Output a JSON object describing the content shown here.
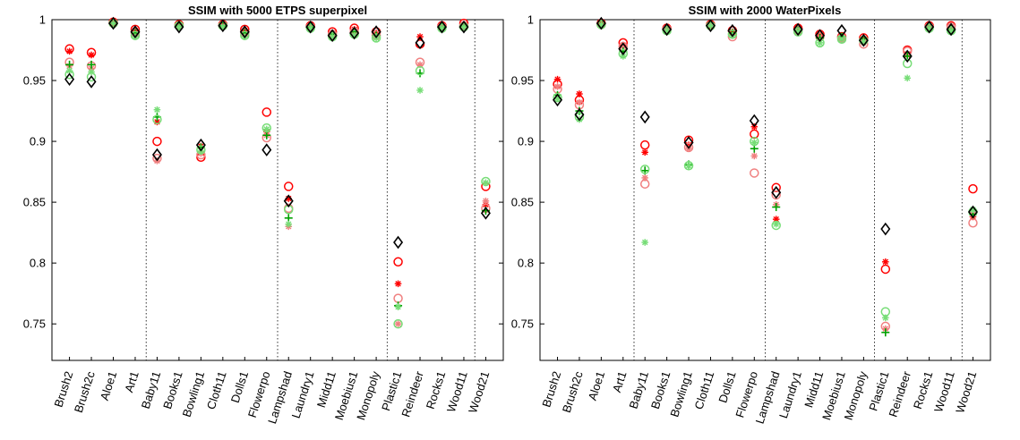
{
  "chart_data": [
    {
      "type": "scatter",
      "title": "SSIM with 5000 ETPS superpixel",
      "ylim": [
        0.72,
        1.0
      ],
      "yticks": [
        "0.75",
        "0.8",
        "0.85",
        "0.9",
        "0.95",
        "1"
      ],
      "yticks_values": [
        0.75,
        0.8,
        0.85,
        0.9,
        0.95,
        1.0
      ],
      "categories": [
        "Brush2",
        "Brush2c",
        "Aloe1",
        "Art1",
        "Baby11",
        "Books1",
        "Bowling1",
        "Cloth11",
        "Dolls1",
        "Flowerpo",
        "Lampshad",
        "Laundry1",
        "Midd11",
        "Moebius1",
        "Monopoly",
        "Plastic1",
        "Reindeer",
        "Rocks1",
        "Wood11",
        "Wood21"
      ],
      "separators_after": [
        "Art1",
        "Flowerpo",
        "Monopoly",
        "Wood11"
      ],
      "grid": false,
      "legend": "none",
      "series": [
        {
          "marker": "circle",
          "color": "#ff0000",
          "values": [
            0.976,
            0.973,
            0.998,
            0.992,
            0.9,
            0.996,
            0.887,
            0.996,
            0.992,
            0.924,
            0.863,
            0.995,
            0.99,
            0.993,
            0.99,
            0.801,
            0.98,
            0.995,
            0.997,
            0.863
          ]
        },
        {
          "marker": "asterisk",
          "color": "#ff0000",
          "values": [
            0.974,
            0.971,
            0.998,
            0.991,
            0.916,
            0.996,
            0.896,
            0.996,
            0.991,
            0.908,
            0.853,
            0.995,
            0.989,
            0.992,
            0.989,
            0.783,
            0.986,
            0.995,
            0.996,
            0.848
          ]
        },
        {
          "marker": "circle",
          "color": "#f08080",
          "values": [
            0.965,
            0.962,
            0.997,
            0.989,
            0.886,
            0.995,
            0.889,
            0.995,
            0.989,
            0.903,
            0.845,
            0.994,
            0.988,
            0.99,
            0.987,
            0.771,
            0.965,
            0.994,
            0.995,
            0.845
          ]
        },
        {
          "marker": "asterisk",
          "color": "#f08080",
          "values": [
            0.962,
            0.96,
            0.997,
            0.988,
            0.884,
            0.995,
            0.89,
            0.995,
            0.988,
            0.905,
            0.83,
            0.994,
            0.987,
            0.989,
            0.986,
            0.75,
            0.963,
            0.994,
            0.995,
            0.851
          ]
        },
        {
          "marker": "plus",
          "color": "#00a000",
          "values": [
            0.963,
            0.963,
            0.997,
            0.989,
            0.92,
            0.995,
            0.895,
            0.995,
            0.989,
            0.905,
            0.837,
            0.994,
            0.988,
            0.99,
            0.987,
            0.765,
            0.956,
            0.994,
            0.995,
            0.843
          ]
        },
        {
          "marker": "circle",
          "color": "#77dd77",
          "values": [
            0.955,
            0.953,
            0.997,
            0.987,
            0.918,
            0.995,
            0.893,
            0.995,
            0.987,
            0.911,
            0.844,
            0.993,
            0.986,
            0.988,
            0.985,
            0.75,
            0.958,
            0.993,
            0.994,
            0.867
          ]
        },
        {
          "marker": "asterisk",
          "color": "#77dd77",
          "values": [
            0.958,
            0.957,
            0.997,
            0.986,
            0.926,
            0.994,
            0.892,
            0.994,
            0.986,
            0.91,
            0.832,
            0.993,
            0.986,
            0.987,
            0.985,
            0.764,
            0.942,
            0.993,
            0.994,
            0.866
          ]
        },
        {
          "marker": "diamond",
          "color": "#000000",
          "values": [
            0.951,
            0.949,
            0.997,
            0.99,
            0.889,
            0.994,
            0.897,
            0.995,
            0.99,
            0.893,
            0.851,
            0.994,
            0.987,
            0.989,
            0.99,
            0.817,
            0.981,
            0.994,
            0.994,
            0.841
          ]
        }
      ]
    },
    {
      "type": "scatter",
      "title": "SSIM with 2000 WaterPixels",
      "ylim": [
        0.72,
        1.0
      ],
      "yticks": [
        "0.75",
        "0.8",
        "0.85",
        "0.9",
        "0.95",
        "1"
      ],
      "yticks_values": [
        0.75,
        0.8,
        0.85,
        0.9,
        0.95,
        1.0
      ],
      "categories": [
        "Brush2",
        "Brush2c",
        "Aloe1",
        "Art1",
        "Baby11",
        "Books1",
        "Bowling1",
        "Cloth11",
        "Dolls1",
        "Flowerpo",
        "Lampshad",
        "Laundry1",
        "Midd11",
        "Moebius1",
        "Monopoly",
        "Plastic1",
        "Reindeer",
        "Rocks1",
        "Wood11",
        "Wood21"
      ],
      "separators_after": [
        "Art1",
        "Flowerpo",
        "Monopoly",
        "Wood11"
      ],
      "grid": false,
      "legend": "none",
      "series": [
        {
          "marker": "circle",
          "color": "#ff0000",
          "values": [
            0.947,
            0.934,
            0.997,
            0.981,
            0.897,
            0.993,
            0.901,
            0.996,
            0.991,
            0.906,
            0.862,
            0.993,
            0.988,
            0.986,
            0.985,
            0.795,
            0.975,
            0.995,
            0.995,
            0.861
          ]
        },
        {
          "marker": "asterisk",
          "color": "#ff0000",
          "values": [
            0.951,
            0.939,
            0.997,
            0.979,
            0.891,
            0.993,
            0.897,
            0.995,
            0.99,
            0.912,
            0.836,
            0.992,
            0.987,
            0.986,
            0.984,
            0.801,
            0.971,
            0.994,
            0.994,
            0.838
          ]
        },
        {
          "marker": "circle",
          "color": "#f08080",
          "values": [
            0.943,
            0.93,
            0.996,
            0.978,
            0.865,
            0.992,
            0.895,
            0.995,
            0.986,
            0.874,
            0.856,
            0.991,
            0.986,
            0.985,
            0.98,
            0.748,
            0.974,
            0.994,
            0.994,
            0.833
          ]
        },
        {
          "marker": "asterisk",
          "color": "#f08080",
          "values": [
            0.945,
            0.932,
            0.996,
            0.978,
            0.87,
            0.992,
            0.894,
            0.995,
            0.987,
            0.888,
            0.848,
            0.991,
            0.986,
            0.985,
            0.981,
            0.746,
            0.972,
            0.994,
            0.994,
            0.84
          ]
        },
        {
          "marker": "plus",
          "color": "#00a000",
          "values": [
            0.938,
            0.925,
            0.996,
            0.974,
            0.876,
            0.991,
            0.881,
            0.995,
            0.989,
            0.894,
            0.846,
            0.991,
            0.985,
            0.986,
            0.984,
            0.743,
            0.97,
            0.993,
            0.992,
            0.84
          ]
        },
        {
          "marker": "circle",
          "color": "#77dd77",
          "values": [
            0.936,
            0.92,
            0.996,
            0.972,
            0.877,
            0.991,
            0.88,
            0.995,
            0.988,
            0.9,
            0.831,
            0.99,
            0.981,
            0.984,
            0.983,
            0.76,
            0.964,
            0.993,
            0.991,
            0.842
          ]
        },
        {
          "marker": "asterisk",
          "color": "#77dd77",
          "values": [
            0.935,
            0.918,
            0.996,
            0.97,
            0.817,
            0.991,
            0.88,
            0.995,
            0.987,
            0.899,
            0.832,
            0.99,
            0.981,
            0.984,
            0.982,
            0.755,
            0.952,
            0.993,
            0.991,
            0.844
          ]
        },
        {
          "marker": "diamond",
          "color": "#000000",
          "values": [
            0.934,
            0.922,
            0.997,
            0.976,
            0.92,
            0.992,
            0.899,
            0.995,
            0.991,
            0.917,
            0.858,
            0.992,
            0.987,
            0.991,
            0.983,
            0.828,
            0.97,
            0.994,
            0.992,
            0.842
          ]
        }
      ]
    }
  ]
}
